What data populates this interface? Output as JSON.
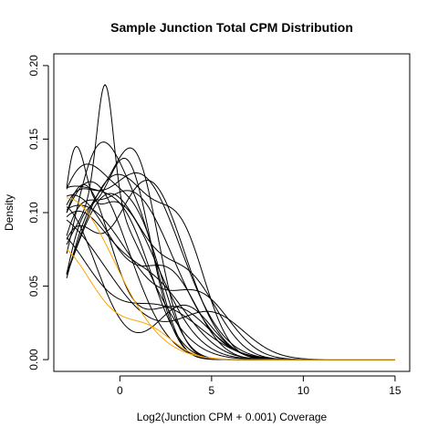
{
  "chart_data": {
    "type": "line",
    "title": "Sample Junction Total CPM Distribution",
    "xlabel": "Log2(Junction CPM + 0.001) Coverage",
    "ylabel": "Density",
    "xlim": [
      -3.6,
      15.8
    ],
    "ylim": [
      -0.008,
      0.208
    ],
    "x_ticks": [
      0,
      5,
      10,
      15
    ],
    "x_tick_labels": [
      "0",
      "5",
      "10",
      "15"
    ],
    "y_ticks": [
      0.0,
      0.05,
      0.1,
      0.15,
      0.2
    ],
    "y_tick_labels": [
      "0.00",
      "0.05",
      "0.10",
      "0.15",
      "0.20"
    ],
    "grid": false,
    "legend": "none",
    "x_range": [
      -2.9,
      15.0
    ],
    "series": [
      {
        "color": "#000000",
        "components": [
          {
            "w": 1.0,
            "mu": -1.0,
            "sd": 2.4
          },
          {
            "w": 0.75,
            "mu": -0.8,
            "sd": 0.45
          }
        ]
      },
      {
        "color": "#000000",
        "components": [
          {
            "w": 1.0,
            "mu": -0.3,
            "sd": 2.3
          },
          {
            "w": 0.7,
            "mu": -2.5,
            "sd": 0.6
          }
        ]
      },
      {
        "color": "#000000",
        "components": [
          {
            "w": 1.0,
            "mu": 0.8,
            "sd": 1.3
          },
          {
            "w": 0.6,
            "mu": -1.8,
            "sd": 1.2
          }
        ]
      },
      {
        "color": "#000000",
        "components": [
          {
            "w": 1.0,
            "mu": 0.3,
            "sd": 1.35
          },
          {
            "w": 0.5,
            "mu": -2.2,
            "sd": 0.9
          }
        ]
      },
      {
        "color": "#000000",
        "components": [
          {
            "w": 1.0,
            "mu": -1.0,
            "sd": 1.6
          },
          {
            "w": 0.3,
            "mu": 1.5,
            "sd": 1.0
          }
        ]
      },
      {
        "color": "#000000",
        "components": [
          {
            "w": 1.0,
            "mu": -2.0,
            "sd": 1.9
          },
          {
            "w": 0.5,
            "mu": 1.2,
            "sd": 1.3
          }
        ]
      },
      {
        "color": "#000000",
        "components": [
          {
            "w": 1.0,
            "mu": -3.0,
            "sd": 2.3
          },
          {
            "w": 0.55,
            "mu": 0.5,
            "sd": 1.5
          }
        ]
      },
      {
        "color": "#000000",
        "components": [
          {
            "w": 1.0,
            "mu": -1.6,
            "sd": 2.1
          }
        ]
      },
      {
        "color": "#000000",
        "components": [
          {
            "w": 1.0,
            "mu": -3.2,
            "sd": 1.9
          },
          {
            "w": 0.35,
            "mu": 3.5,
            "sd": 1.5
          }
        ]
      },
      {
        "color": "#000000",
        "components": [
          {
            "w": 1.0,
            "mu": -2.6,
            "sd": 2.5
          },
          {
            "w": 0.45,
            "mu": 2.8,
            "sd": 1.5
          }
        ]
      },
      {
        "color": "#000000",
        "components": [
          {
            "w": 1.0,
            "mu": -0.2,
            "sd": 2.2
          },
          {
            "w": 0.5,
            "mu": 3.5,
            "sd": 1.3
          }
        ]
      },
      {
        "color": "#000000",
        "components": [
          {
            "w": 1.0,
            "mu": 0.5,
            "sd": 2.4
          },
          {
            "w": 0.4,
            "mu": -2.5,
            "sd": 1.0
          }
        ]
      },
      {
        "color": "#000000",
        "components": [
          {
            "w": 1.0,
            "mu": -0.6,
            "sd": 2.0
          },
          {
            "w": 0.45,
            "mu": 3.8,
            "sd": 1.6
          }
        ]
      },
      {
        "color": "#000000",
        "components": [
          {
            "w": 1.0,
            "mu": -2.5,
            "sd": 2.0
          },
          {
            "w": 0.5,
            "mu": 1.8,
            "sd": 1.9
          }
        ]
      },
      {
        "color": "#000000",
        "components": [
          {
            "w": 1.0,
            "mu": 1.5,
            "sd": 2.0
          },
          {
            "w": 0.6,
            "mu": -2.6,
            "sd": 1.2
          }
        ]
      },
      {
        "color": "#000000",
        "components": [
          {
            "w": 1.0,
            "mu": -4.0,
            "sd": 3.3
          },
          {
            "w": 0.3,
            "mu": 5.0,
            "sd": 1.8
          }
        ]
      },
      {
        "color": "#000000",
        "components": [
          {
            "w": 1.0,
            "mu": -2.2,
            "sd": 3.0
          },
          {
            "w": 0.35,
            "mu": 4.5,
            "sd": 1.6
          }
        ]
      },
      {
        "color": "#000000",
        "components": [
          {
            "w": 1.0,
            "mu": 1.0,
            "sd": 2.3
          },
          {
            "w": 0.6,
            "mu": -2.8,
            "sd": 1.3
          }
        ]
      },
      {
        "color": "#000000",
        "components": [
          {
            "w": 1.0,
            "mu": -2.0,
            "sd": 1.55
          },
          {
            "w": 0.3,
            "mu": 3.0,
            "sd": 1.8
          }
        ]
      },
      {
        "color": "#000000",
        "components": [
          {
            "w": 1.0,
            "mu": -3.8,
            "sd": 2.2
          },
          {
            "w": 0.4,
            "mu": 2.2,
            "sd": 2.2
          }
        ]
      },
      {
        "color": "#FFA500",
        "components": [
          {
            "w": 1.0,
            "mu": -2.9,
            "sd": 2.6
          }
        ]
      },
      {
        "color": "#FFA500",
        "components": [
          {
            "w": 1.0,
            "mu": -3.5,
            "sd": 2.1
          },
          {
            "w": 0.25,
            "mu": 1.5,
            "sd": 1.4
          }
        ]
      }
    ],
    "series_peak_density": [
      0.187,
      0.145,
      0.144,
      0.137,
      0.148,
      0.133,
      0.118,
      0.121,
      0.104,
      0.112,
      0.126,
      0.115,
      0.113,
      0.101,
      0.122,
      0.095,
      0.105,
      0.127,
      0.119,
      0.083,
      0.11,
      0.075
    ]
  }
}
